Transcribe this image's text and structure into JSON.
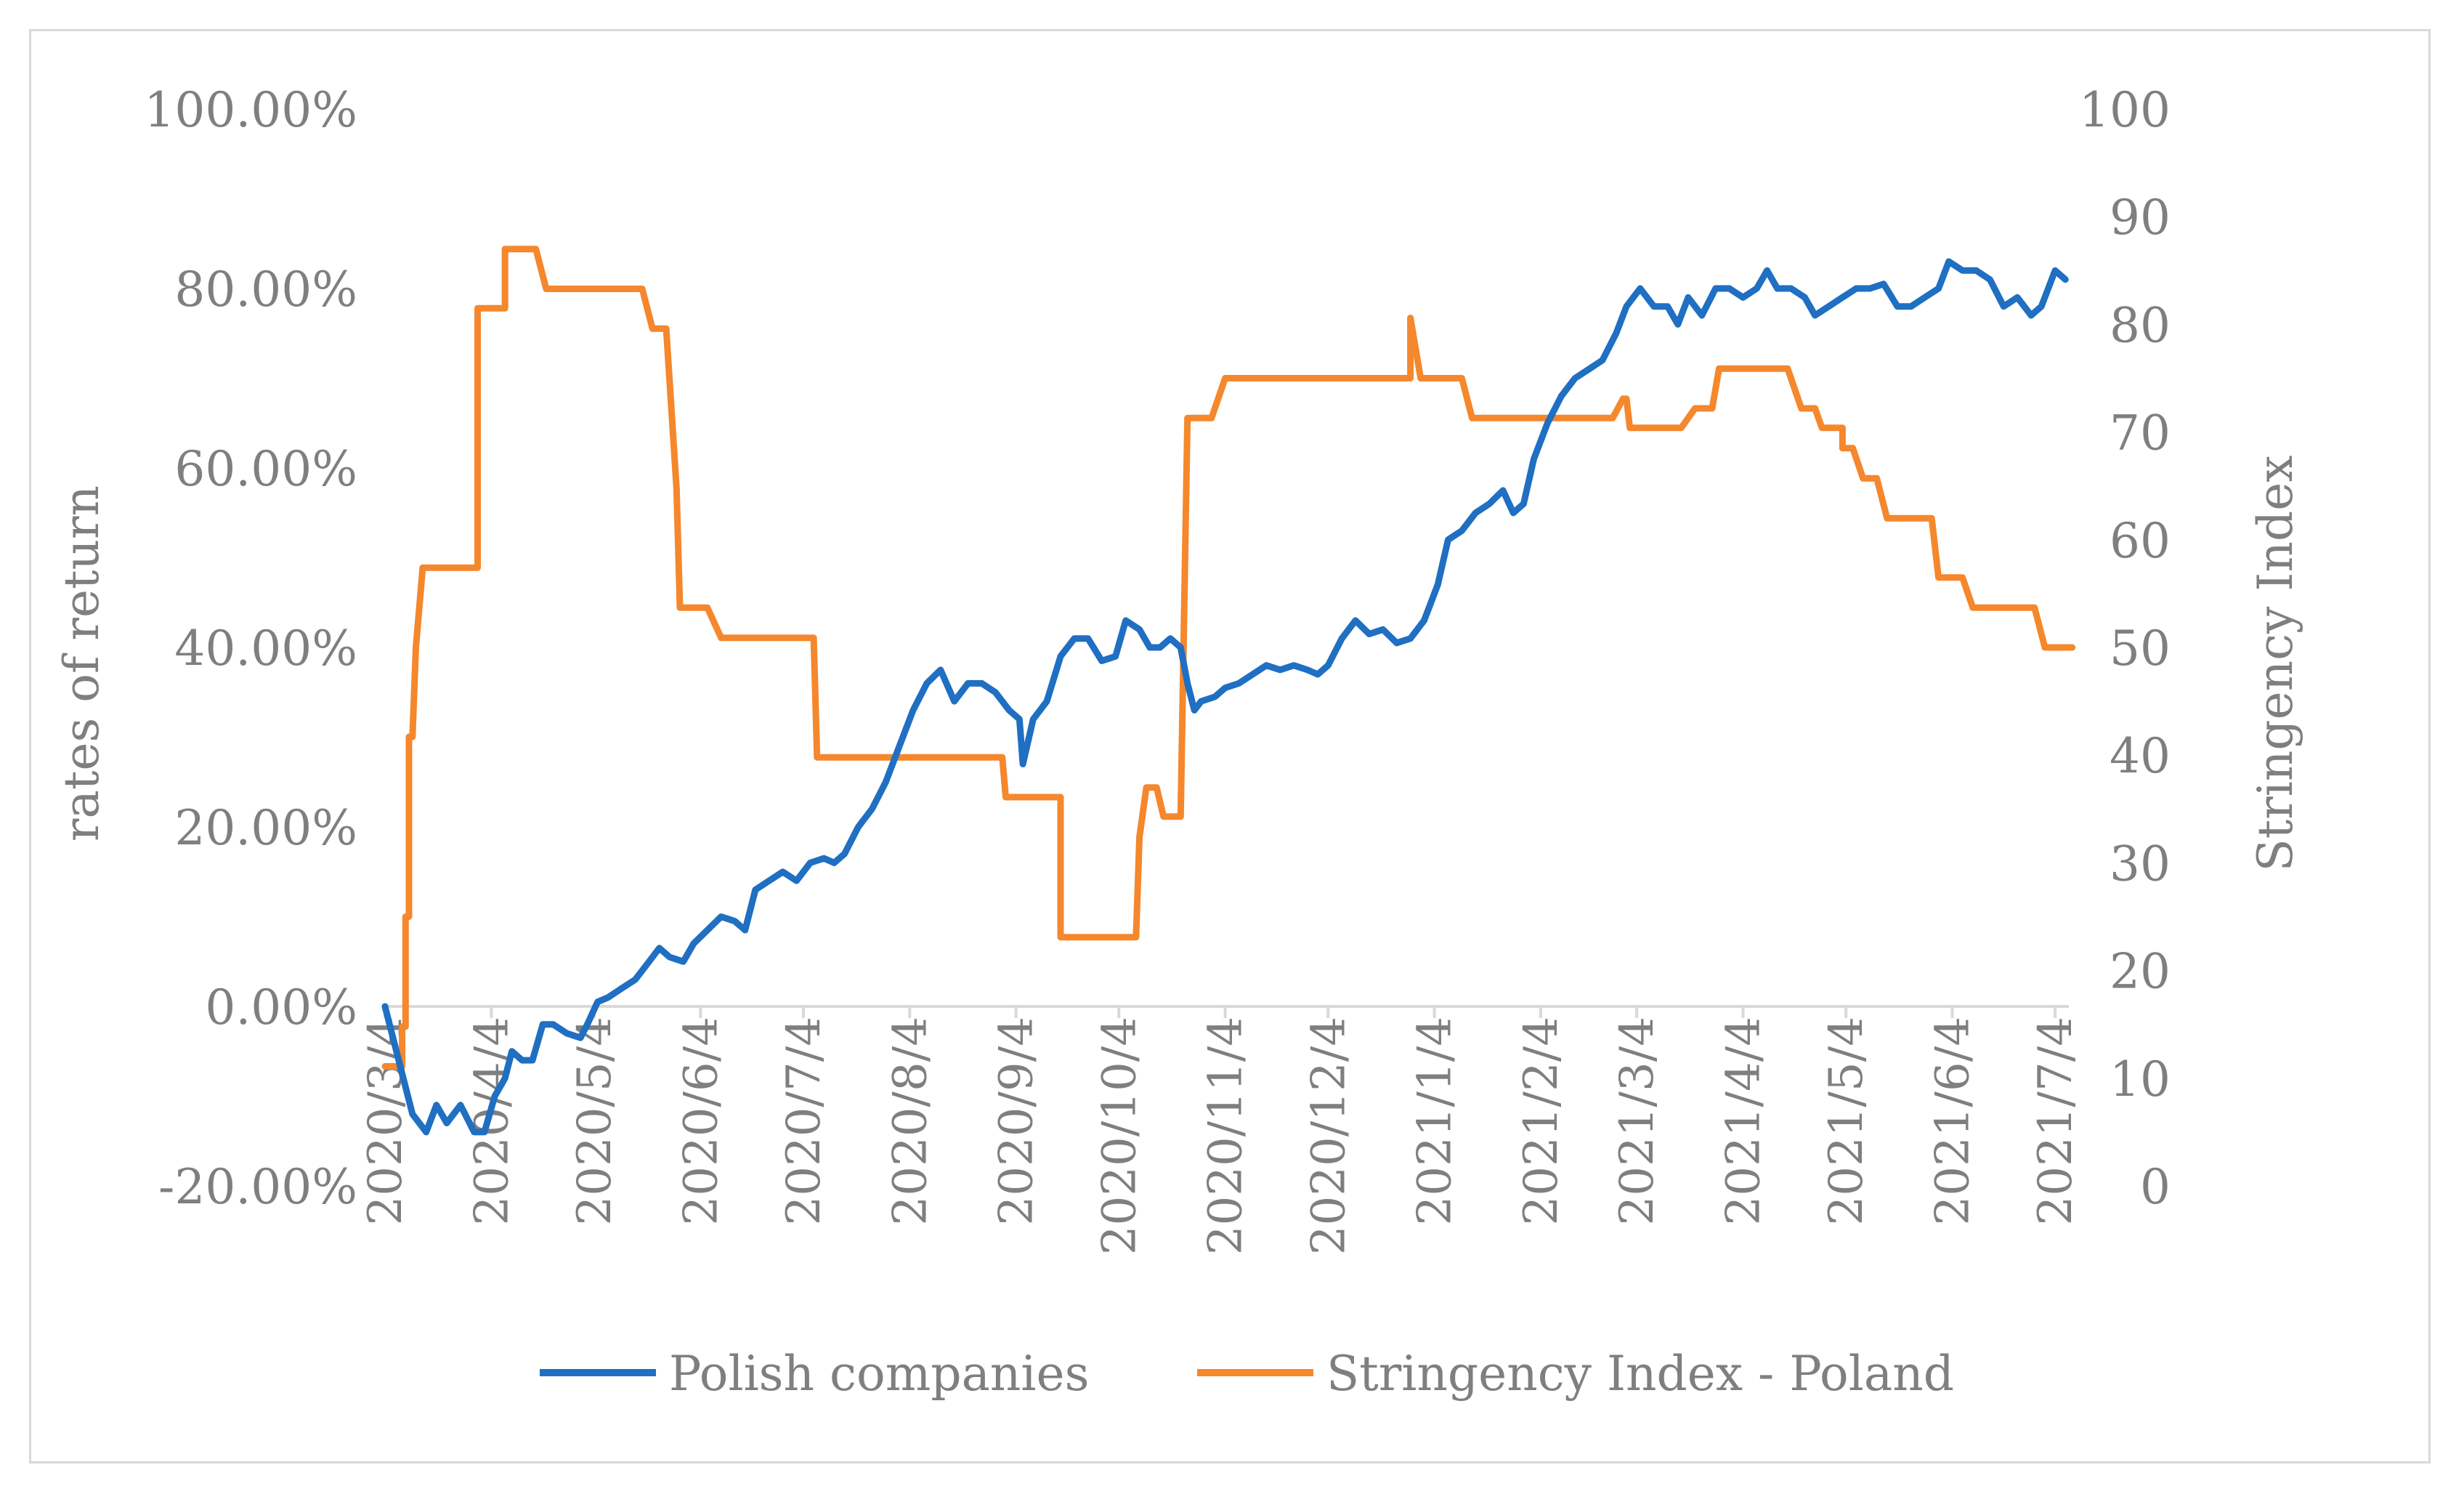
{
  "chart_data": {
    "type": "line",
    "title": "",
    "xlabel": "",
    "ylabel": "rates of return",
    "y2label": "Stringency Index",
    "ylim": [
      -0.2,
      1.0
    ],
    "y2lim": [
      0,
      100
    ],
    "x_start": "2020/3/4",
    "x_end": "2021/7/8",
    "x_ticks": [
      "2020/3/4",
      "2020/4/4",
      "2020/5/4",
      "2020/6/4",
      "2020/7/4",
      "2020/8/4",
      "2020/9/4",
      "2020/10/4",
      "2020/11/4",
      "2020/12/4",
      "2021/1/4",
      "2021/2/4",
      "2021/3/4",
      "2021/4/4",
      "2021/5/4",
      "2021/6/4",
      "2021/7/4"
    ],
    "y_ticks": [
      "100.00%",
      "80.00%",
      "60.00%",
      "40.00%",
      "20.00%",
      "0.00%",
      "-20.00%"
    ],
    "y_tick_values": [
      1.0,
      0.8,
      0.6,
      0.4,
      0.2,
      0.0,
      -0.2
    ],
    "y2_ticks": [
      "100",
      "90",
      "80",
      "70",
      "60",
      "50",
      "40",
      "30",
      "20",
      "10",
      "0"
    ],
    "y2_tick_values": [
      100,
      90,
      80,
      70,
      60,
      50,
      40,
      30,
      20,
      10,
      0
    ],
    "legend_position": "bottom",
    "series": [
      {
        "name": "Polish companies",
        "axis": "left",
        "color": "#1f6fc2",
        "points": [
          [
            "2020-03-04",
            0.0
          ],
          [
            "2020-03-06",
            -0.03
          ],
          [
            "2020-03-08",
            -0.06
          ],
          [
            "2020-03-12",
            -0.12
          ],
          [
            "2020-03-16",
            -0.14
          ],
          [
            "2020-03-19",
            -0.11
          ],
          [
            "2020-03-22",
            -0.13
          ],
          [
            "2020-03-26",
            -0.11
          ],
          [
            "2020-03-30",
            -0.14
          ],
          [
            "2020-04-02",
            -0.14
          ],
          [
            "2020-04-05",
            -0.1
          ],
          [
            "2020-04-08",
            -0.08
          ],
          [
            "2020-04-10",
            -0.05
          ],
          [
            "2020-04-13",
            -0.06
          ],
          [
            "2020-04-16",
            -0.06
          ],
          [
            "2020-04-19",
            -0.02
          ],
          [
            "2020-04-22",
            -0.02
          ],
          [
            "2020-04-26",
            -0.03
          ],
          [
            "2020-04-30",
            -0.035
          ],
          [
            "2020-05-02",
            -0.02
          ],
          [
            "2020-05-05",
            0.005
          ],
          [
            "2020-05-08",
            0.01
          ],
          [
            "2020-05-12",
            0.02
          ],
          [
            "2020-05-16",
            0.03
          ],
          [
            "2020-05-20",
            0.05
          ],
          [
            "2020-05-23",
            0.065
          ],
          [
            "2020-05-26",
            0.055
          ],
          [
            "2020-05-30",
            0.05
          ],
          [
            "2020-06-02",
            0.07
          ],
          [
            "2020-06-06",
            0.085
          ],
          [
            "2020-06-10",
            0.1
          ],
          [
            "2020-06-14",
            0.095
          ],
          [
            "2020-06-17",
            0.085
          ],
          [
            "2020-06-20",
            0.13
          ],
          [
            "2020-06-24",
            0.14
          ],
          [
            "2020-06-28",
            0.15
          ],
          [
            "2020-07-02",
            0.14
          ],
          [
            "2020-07-06",
            0.16
          ],
          [
            "2020-07-10",
            0.165
          ],
          [
            "2020-07-13",
            0.16
          ],
          [
            "2020-07-16",
            0.17
          ],
          [
            "2020-07-20",
            0.2
          ],
          [
            "2020-07-24",
            0.22
          ],
          [
            "2020-07-28",
            0.25
          ],
          [
            "2020-08-01",
            0.29
          ],
          [
            "2020-08-05",
            0.33
          ],
          [
            "2020-08-09",
            0.36
          ],
          [
            "2020-08-13",
            0.375
          ],
          [
            "2020-08-17",
            0.34
          ],
          [
            "2020-08-21",
            0.36
          ],
          [
            "2020-08-25",
            0.36
          ],
          [
            "2020-08-29",
            0.35
          ],
          [
            "2020-09-02",
            0.33
          ],
          [
            "2020-09-05",
            0.32
          ],
          [
            "2020-09-06",
            0.27
          ],
          [
            "2020-09-09",
            0.32
          ],
          [
            "2020-09-13",
            0.34
          ],
          [
            "2020-09-17",
            0.39
          ],
          [
            "2020-09-21",
            0.41
          ],
          [
            "2020-09-25",
            0.41
          ],
          [
            "2020-09-29",
            0.385
          ],
          [
            "2020-10-03",
            0.39
          ],
          [
            "2020-10-06",
            0.43
          ],
          [
            "2020-10-10",
            0.42
          ],
          [
            "2020-10-13",
            0.4
          ],
          [
            "2020-10-16",
            0.4
          ],
          [
            "2020-10-19",
            0.41
          ],
          [
            "2020-10-22",
            0.4
          ],
          [
            "2020-10-24",
            0.36
          ],
          [
            "2020-10-26",
            0.33
          ],
          [
            "2020-10-28",
            0.34
          ],
          [
            "2020-11-01",
            0.345
          ],
          [
            "2020-11-04",
            0.355
          ],
          [
            "2020-11-08",
            0.36
          ],
          [
            "2020-11-12",
            0.37
          ],
          [
            "2020-11-16",
            0.38
          ],
          [
            "2020-11-20",
            0.375
          ],
          [
            "2020-11-24",
            0.38
          ],
          [
            "2020-11-28",
            0.375
          ],
          [
            "2020-12-01",
            0.37
          ],
          [
            "2020-12-04",
            0.38
          ],
          [
            "2020-12-08",
            0.41
          ],
          [
            "2020-12-12",
            0.43
          ],
          [
            "2020-12-16",
            0.415
          ],
          [
            "2020-12-20",
            0.42
          ],
          [
            "2020-12-24",
            0.405
          ],
          [
            "2020-12-28",
            0.41
          ],
          [
            "2021-01-01",
            0.43
          ],
          [
            "2021-01-05",
            0.47
          ],
          [
            "2021-01-08",
            0.52
          ],
          [
            "2021-01-12",
            0.53
          ],
          [
            "2021-01-16",
            0.55
          ],
          [
            "2021-01-20",
            0.56
          ],
          [
            "2021-01-24",
            0.575
          ],
          [
            "2021-01-27",
            0.55
          ],
          [
            "2021-01-30",
            0.56
          ],
          [
            "2021-02-02",
            0.61
          ],
          [
            "2021-02-06",
            0.65
          ],
          [
            "2021-02-10",
            0.68
          ],
          [
            "2021-02-14",
            0.7
          ],
          [
            "2021-02-18",
            0.71
          ],
          [
            "2021-02-22",
            0.72
          ],
          [
            "2021-02-26",
            0.75
          ],
          [
            "2021-03-01",
            0.78
          ],
          [
            "2021-03-05",
            0.8
          ],
          [
            "2021-03-09",
            0.78
          ],
          [
            "2021-03-13",
            0.78
          ],
          [
            "2021-03-16",
            0.76
          ],
          [
            "2021-03-19",
            0.79
          ],
          [
            "2021-03-23",
            0.77
          ],
          [
            "2021-03-27",
            0.8
          ],
          [
            "2021-03-31",
            0.8
          ],
          [
            "2021-04-04",
            0.79
          ],
          [
            "2021-04-08",
            0.8
          ],
          [
            "2021-04-11",
            0.82
          ],
          [
            "2021-04-14",
            0.8
          ],
          [
            "2021-04-18",
            0.8
          ],
          [
            "2021-04-22",
            0.79
          ],
          [
            "2021-04-25",
            0.77
          ],
          [
            "2021-04-29",
            0.78
          ],
          [
            "2021-05-03",
            0.79
          ],
          [
            "2021-05-07",
            0.8
          ],
          [
            "2021-05-11",
            0.8
          ],
          [
            "2021-05-15",
            0.805
          ],
          [
            "2021-05-19",
            0.78
          ],
          [
            "2021-05-23",
            0.78
          ],
          [
            "2021-05-27",
            0.79
          ],
          [
            "2021-05-31",
            0.8
          ],
          [
            "2021-06-03",
            0.83
          ],
          [
            "2021-06-07",
            0.82
          ],
          [
            "2021-06-11",
            0.82
          ],
          [
            "2021-06-15",
            0.81
          ],
          [
            "2021-06-19",
            0.78
          ],
          [
            "2021-06-23",
            0.79
          ],
          [
            "2021-06-27",
            0.77
          ],
          [
            "2021-06-30",
            0.78
          ],
          [
            "2021-07-04",
            0.82
          ],
          [
            "2021-07-07",
            0.81
          ]
        ]
      },
      {
        "name": "Stringency Index - Poland",
        "axis": "right",
        "color": "#f5872d",
        "points": [
          [
            "2020-03-04",
            11.1
          ],
          [
            "2020-03-09",
            11.1
          ],
          [
            "2020-03-09",
            14.8
          ],
          [
            "2020-03-10",
            14.8
          ],
          [
            "2020-03-10",
            25.0
          ],
          [
            "2020-03-11",
            25.0
          ],
          [
            "2020-03-11",
            41.7
          ],
          [
            "2020-03-12",
            41.7
          ],
          [
            "2020-03-13",
            50.0
          ],
          [
            "2020-03-15",
            57.4
          ],
          [
            "2020-03-31",
            57.4
          ],
          [
            "2020-03-31",
            81.5
          ],
          [
            "2020-04-08",
            81.5
          ],
          [
            "2020-04-08",
            87.0
          ],
          [
            "2020-04-17",
            87.0
          ],
          [
            "2020-04-20",
            83.3
          ],
          [
            "2020-05-18",
            83.3
          ],
          [
            "2020-05-21",
            79.6
          ],
          [
            "2020-05-25",
            79.6
          ],
          [
            "2020-05-28",
            64.8
          ],
          [
            "2020-05-29",
            53.7
          ],
          [
            "2020-06-06",
            53.7
          ],
          [
            "2020-06-10",
            50.9
          ],
          [
            "2020-07-07",
            50.9
          ],
          [
            "2020-07-08",
            39.8
          ],
          [
            "2020-08-31",
            39.8
          ],
          [
            "2020-09-01",
            36.1
          ],
          [
            "2020-09-17",
            36.1
          ],
          [
            "2020-09-17",
            23.1
          ],
          [
            "2020-10-09",
            23.1
          ],
          [
            "2020-10-10",
            32.4
          ],
          [
            "2020-10-12",
            37.0
          ],
          [
            "2020-10-15",
            37.0
          ],
          [
            "2020-10-17",
            34.3
          ],
          [
            "2020-10-22",
            34.3
          ],
          [
            "2020-10-24",
            71.3
          ],
          [
            "2020-10-31",
            71.3
          ],
          [
            "2020-11-04",
            75.0
          ],
          [
            "2020-12-28",
            75.0
          ],
          [
            "2020-12-28",
            80.6
          ],
          [
            "2020-12-31",
            75.0
          ],
          [
            "2021-01-12",
            75.0
          ],
          [
            "2021-01-15",
            71.3
          ],
          [
            "2021-02-25",
            71.3
          ],
          [
            "2021-02-28",
            73.1
          ],
          [
            "2021-03-01",
            73.1
          ],
          [
            "2021-03-02",
            70.4
          ],
          [
            "2021-03-17",
            70.4
          ],
          [
            "2021-03-21",
            72.2
          ],
          [
            "2021-03-26",
            72.2
          ],
          [
            "2021-03-28",
            75.9
          ],
          [
            "2021-04-17",
            75.9
          ],
          [
            "2021-04-21",
            72.2
          ],
          [
            "2021-04-25",
            72.2
          ],
          [
            "2021-04-27",
            70.4
          ],
          [
            "2021-05-03",
            70.4
          ],
          [
            "2021-05-03",
            68.5
          ],
          [
            "2021-05-06",
            68.5
          ],
          [
            "2021-05-09",
            65.7
          ],
          [
            "2021-05-13",
            65.7
          ],
          [
            "2021-05-16",
            62.0
          ],
          [
            "2021-05-29",
            62.0
          ],
          [
            "2021-05-31",
            56.5
          ],
          [
            "2021-06-07",
            56.5
          ],
          [
            "2021-06-10",
            53.7
          ],
          [
            "2021-06-28",
            53.7
          ],
          [
            "2021-07-01",
            50.0
          ],
          [
            "2021-07-09",
            50.0
          ]
        ]
      }
    ]
  }
}
